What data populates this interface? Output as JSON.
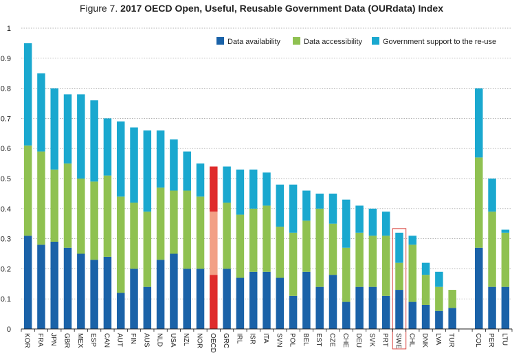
{
  "chart_data": {
    "type": "bar",
    "stacked": true,
    "title_prefix": "Figure 7.",
    "title": "2017 OECD Open, Useful, Reusable Government Data (OURdata) Index",
    "xlabel": "",
    "ylabel": "",
    "ylim": [
      0,
      1
    ],
    "yticks": [
      "0",
      "0.1",
      "0.2",
      "0.3",
      "0.4",
      "0.5",
      "0.6",
      "0.7",
      "0.8",
      "0.9",
      "1"
    ],
    "grid": true,
    "legend_position": "top-right",
    "categories": [
      "KOR",
      "FRA",
      "JPN",
      "GBR",
      "MEX",
      "ESP",
      "CAN",
      "AUT",
      "FIN",
      "AUS",
      "NLD",
      "USA",
      "NZL",
      "NOR",
      "OECD",
      "GRC",
      "IRL",
      "ISR",
      "ITA",
      "SVN",
      "POL",
      "BEL",
      "EST",
      "CZE",
      "CHE",
      "DEU",
      "SVK",
      "PRT",
      "SWE",
      "CHL",
      "DNK",
      "LVA",
      "TUR",
      "",
      "COL",
      "PER",
      "LTU"
    ],
    "series": [
      {
        "name": "Data availability",
        "color": "#1a62a8",
        "values": [
          0.31,
          0.28,
          0.29,
          0.27,
          0.25,
          0.23,
          0.24,
          0.12,
          0.2,
          0.14,
          0.23,
          0.25,
          0.2,
          0.2,
          0.18,
          0.2,
          0.17,
          0.19,
          0.19,
          0.17,
          0.11,
          0.19,
          0.14,
          0.18,
          0.09,
          0.14,
          0.14,
          0.11,
          0.13,
          0.09,
          0.08,
          0.06,
          0.07,
          null,
          0.27,
          0.14,
          0.14
        ]
      },
      {
        "name": "Data accessibility",
        "color": "#8fc151",
        "values": [
          0.3,
          0.31,
          0.24,
          0.28,
          0.25,
          0.26,
          0.27,
          0.32,
          0.22,
          0.25,
          0.24,
          0.21,
          0.26,
          0.24,
          0.21,
          0.22,
          0.21,
          0.21,
          0.22,
          0.17,
          0.21,
          0.17,
          0.26,
          0.17,
          0.18,
          0.18,
          0.17,
          0.2,
          0.09,
          0.19,
          0.1,
          0.08,
          0.06,
          null,
          0.3,
          0.25,
          0.18
        ]
      },
      {
        "name": "Government support to the re-use",
        "color": "#1aa8cf",
        "values": [
          0.34,
          0.26,
          0.27,
          0.23,
          0.28,
          0.27,
          0.19,
          0.25,
          0.25,
          0.27,
          0.19,
          0.17,
          0.13,
          0.11,
          0.15,
          0.12,
          0.15,
          0.13,
          0.11,
          0.14,
          0.16,
          0.1,
          0.05,
          0.1,
          0.16,
          0.09,
          0.09,
          0.08,
          0.1,
          0.03,
          0.04,
          0.05,
          0.0,
          null,
          0.23,
          0.11,
          0.01
        ]
      }
    ],
    "highlight": {
      "OECD": {
        "colors": [
          "#df2b2b",
          "#f2a086",
          "#df2b2b"
        ]
      },
      "SWE": {
        "box_color": "#d9443f"
      }
    }
  }
}
